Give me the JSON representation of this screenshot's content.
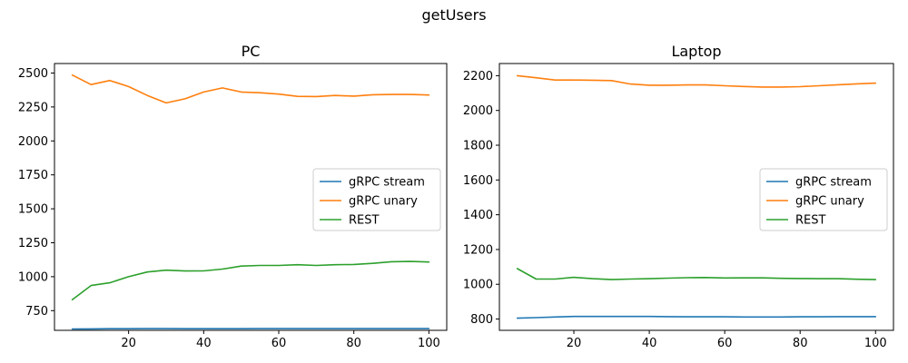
{
  "figure": {
    "title": "getUsers"
  },
  "chart_data": [
    {
      "type": "line",
      "title": "PC",
      "xlabel": "",
      "ylabel": "",
      "xlim": [
        0.25,
        104.75
      ],
      "ylim": [
        605,
        2570
      ],
      "xticks": [
        20,
        40,
        60,
        80,
        100
      ],
      "yticks": [
        750,
        1000,
        1250,
        1500,
        1750,
        2000,
        2250,
        2500
      ],
      "legend": "center-right",
      "x": [
        5,
        10,
        15,
        20,
        25,
        30,
        35,
        40,
        45,
        50,
        55,
        60,
        65,
        70,
        75,
        80,
        85,
        90,
        95,
        100
      ],
      "series": [
        {
          "name": "gRPC stream",
          "color": "#1f77b4",
          "values": [
            615,
            616,
            617,
            617,
            618,
            618,
            617,
            617,
            617,
            617,
            618,
            618,
            618,
            618,
            618,
            618,
            618,
            618,
            618,
            618
          ]
        },
        {
          "name": "gRPC unary",
          "color": "#ff7f0e",
          "values": [
            2485,
            2415,
            2445,
            2400,
            2335,
            2280,
            2310,
            2360,
            2390,
            2360,
            2355,
            2345,
            2328,
            2327,
            2335,
            2330,
            2340,
            2342,
            2342,
            2338
          ]
        },
        {
          "name": "REST",
          "color": "#2ca02c",
          "values": [
            830,
            935,
            955,
            1000,
            1035,
            1048,
            1042,
            1043,
            1056,
            1078,
            1083,
            1083,
            1088,
            1083,
            1088,
            1090,
            1098,
            1110,
            1112,
            1108
          ]
        }
      ]
    },
    {
      "type": "line",
      "title": "Laptop",
      "xlabel": "",
      "ylabel": "",
      "xlim": [
        0.25,
        104.75
      ],
      "ylim": [
        735,
        2270
      ],
      "xticks": [
        20,
        40,
        60,
        80,
        100
      ],
      "yticks": [
        800,
        1000,
        1200,
        1400,
        1600,
        1800,
        2000,
        2200
      ],
      "legend": "center-right",
      "x": [
        5,
        10,
        15,
        20,
        25,
        30,
        35,
        40,
        45,
        50,
        55,
        60,
        65,
        70,
        75,
        80,
        85,
        90,
        95,
        100
      ],
      "series": [
        {
          "name": "gRPC stream",
          "color": "#1f77b4",
          "values": [
            805,
            808,
            812,
            815,
            815,
            815,
            815,
            815,
            814,
            813,
            813,
            813,
            812,
            812,
            812,
            813,
            813,
            814,
            814,
            814
          ]
        },
        {
          "name": "gRPC unary",
          "color": "#ff7f0e",
          "values": [
            2200,
            2188,
            2175,
            2175,
            2174,
            2172,
            2152,
            2145,
            2145,
            2147,
            2147,
            2142,
            2138,
            2135,
            2135,
            2137,
            2142,
            2148,
            2153,
            2157
          ]
        },
        {
          "name": "REST",
          "color": "#2ca02c",
          "values": [
            1090,
            1030,
            1030,
            1040,
            1032,
            1027,
            1030,
            1032,
            1035,
            1038,
            1039,
            1036,
            1037,
            1037,
            1034,
            1033,
            1032,
            1032,
            1029,
            1027
          ]
        }
      ]
    }
  ]
}
